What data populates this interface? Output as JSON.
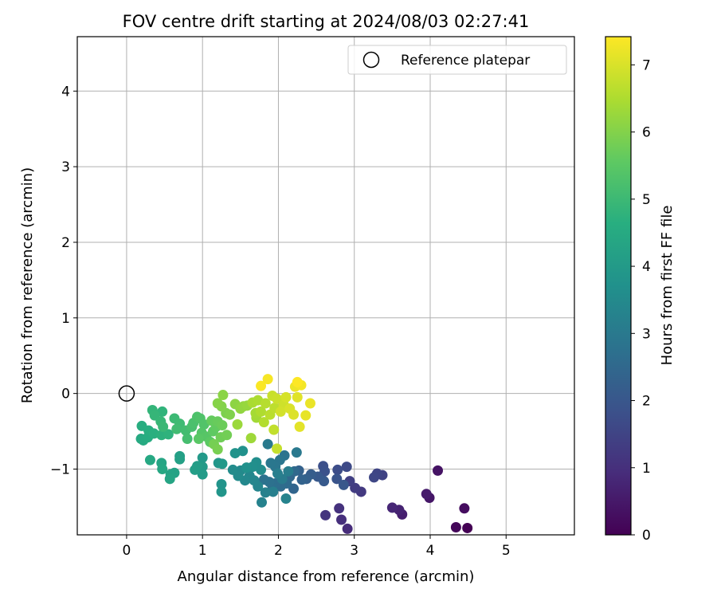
{
  "chart_data": {
    "type": "scatter",
    "title": "FOV centre drift starting at 2024/08/03 02:27:41",
    "xlabel": "Angular distance from reference (arcmin)",
    "ylabel": "Rotation from reference (arcmin)",
    "xlim": [
      -0.65,
      5.9
    ],
    "ylim": [
      -1.87,
      4.72
    ],
    "xticks": [
      0,
      1,
      2,
      3,
      4,
      5
    ],
    "yticks": [
      -1,
      0,
      1,
      2,
      3,
      4
    ],
    "grid": true,
    "legend": {
      "position": "top-right",
      "entries": [
        "Reference platepar"
      ]
    },
    "reference_point": {
      "x": 0,
      "y": 0,
      "label": "Reference platepar"
    },
    "colorbar": {
      "label": "Hours from first FF file",
      "colormap": "viridis",
      "range": [
        0,
        7.42
      ],
      "ticks": [
        0,
        1,
        2,
        3,
        4,
        5,
        6,
        7
      ]
    },
    "points": [
      [
        4.49,
        -1.78,
        0.0
      ],
      [
        4.34,
        -1.77,
        0.12
      ],
      [
        4.45,
        -1.52,
        0.25
      ],
      [
        4.1,
        -1.02,
        0.38
      ],
      [
        3.99,
        -1.38,
        0.45
      ],
      [
        3.95,
        -1.33,
        0.55
      ],
      [
        3.63,
        -1.6,
        0.62
      ],
      [
        3.59,
        -1.54,
        0.72
      ],
      [
        3.5,
        -1.51,
        0.8
      ],
      [
        2.91,
        -1.79,
        0.9
      ],
      [
        2.83,
        -1.67,
        0.98
      ],
      [
        2.8,
        -1.52,
        1.05
      ],
      [
        2.62,
        -1.61,
        1.12
      ],
      [
        3.09,
        -1.3,
        1.22
      ],
      [
        3.01,
        -1.25,
        1.3
      ],
      [
        2.94,
        -1.16,
        1.38
      ],
      [
        3.37,
        -1.08,
        1.45
      ],
      [
        3.3,
        -1.06,
        1.52
      ],
      [
        3.26,
        -1.11,
        1.58
      ],
      [
        2.9,
        -0.97,
        1.65
      ],
      [
        2.78,
        -1.01,
        1.72
      ],
      [
        2.59,
        -0.96,
        1.8
      ],
      [
        2.61,
        -1.03,
        1.85
      ],
      [
        2.77,
        -1.13,
        1.92
      ],
      [
        2.86,
        -1.21,
        2.0
      ],
      [
        2.52,
        -1.1,
        2.05
      ],
      [
        2.6,
        -1.16,
        2.1
      ],
      [
        2.43,
        -1.07,
        2.18
      ],
      [
        2.37,
        -1.13,
        2.25
      ],
      [
        2.27,
        -1.02,
        2.3
      ],
      [
        2.31,
        -1.14,
        2.35
      ],
      [
        2.2,
        -1.26,
        2.42
      ],
      [
        2.15,
        -1.1,
        2.48
      ],
      [
        2.21,
        -1.03,
        2.52
      ],
      [
        2.11,
        -1.19,
        2.58
      ],
      [
        2.03,
        -1.23,
        2.62
      ],
      [
        1.96,
        -1.19,
        2.66
      ],
      [
        1.92,
        -1.22,
        2.7
      ],
      [
        1.88,
        -1.17,
        2.75
      ],
      [
        1.81,
        -1.14,
        2.78
      ],
      [
        2.08,
        -0.82,
        2.82
      ],
      [
        2.02,
        -0.88,
        2.86
      ],
      [
        1.96,
        -0.97,
        2.9
      ],
      [
        1.9,
        -0.92,
        2.94
      ],
      [
        2.24,
        -0.78,
        2.98
      ],
      [
        1.86,
        -0.67,
        3.02
      ],
      [
        2.05,
        -1.13,
        3.06
      ],
      [
        2.13,
        -1.03,
        3.1
      ],
      [
        1.99,
        -1.06,
        3.14
      ],
      [
        1.93,
        -1.3,
        3.18
      ],
      [
        1.83,
        -1.31,
        3.22
      ],
      [
        1.78,
        -1.44,
        3.26
      ],
      [
        2.1,
        -1.39,
        3.3
      ],
      [
        1.73,
        -1.23,
        3.34
      ],
      [
        1.68,
        -1.15,
        3.38
      ],
      [
        1.62,
        -1.09,
        3.42
      ],
      [
        1.56,
        -1.15,
        3.45
      ],
      [
        1.5,
        -1.02,
        3.48
      ],
      [
        1.47,
        -1.09,
        3.52
      ],
      [
        1.4,
        -1.01,
        3.55
      ],
      [
        1.77,
        -1.01,
        3.58
      ],
      [
        1.71,
        -0.91,
        3.62
      ],
      [
        1.66,
        -0.97,
        3.66
      ],
      [
        1.58,
        -0.98,
        3.7
      ],
      [
        1.53,
        -0.76,
        3.72
      ],
      [
        1.43,
        -0.79,
        3.76
      ],
      [
        1.25,
        -1.2,
        3.8
      ],
      [
        1.25,
        -1.3,
        3.84
      ],
      [
        1.21,
        -0.92,
        3.88
      ],
      [
        1.26,
        -0.93,
        3.92
      ],
      [
        1.0,
        -0.85,
        3.96
      ],
      [
        1.0,
        -0.97,
        4.0
      ],
      [
        1.0,
        -1.07,
        4.04
      ],
      [
        0.93,
        -0.96,
        4.08
      ],
      [
        0.9,
        -1.01,
        4.12
      ],
      [
        0.7,
        -0.83,
        4.16
      ],
      [
        0.7,
        -0.87,
        4.2
      ],
      [
        0.63,
        -1.05,
        4.24
      ],
      [
        0.58,
        -1.07,
        4.28
      ],
      [
        0.57,
        -1.13,
        4.32
      ],
      [
        0.46,
        -0.92,
        4.36
      ],
      [
        0.47,
        -1.0,
        4.4
      ],
      [
        0.31,
        -0.88,
        4.44
      ],
      [
        0.19,
        -0.6,
        4.48
      ],
      [
        0.22,
        -0.62,
        4.52
      ],
      [
        0.28,
        -0.58,
        4.56
      ],
      [
        0.2,
        -0.43,
        4.6
      ],
      [
        0.29,
        -0.49,
        4.64
      ],
      [
        0.36,
        -0.53,
        4.68
      ],
      [
        0.46,
        -0.55,
        4.72
      ],
      [
        0.55,
        -0.54,
        4.76
      ],
      [
        0.47,
        -0.24,
        4.8
      ],
      [
        0.34,
        -0.22,
        4.84
      ],
      [
        0.37,
        -0.29,
        4.88
      ],
      [
        0.45,
        -0.37,
        4.92
      ],
      [
        0.48,
        -0.44,
        4.96
      ],
      [
        0.63,
        -0.33,
        5.0
      ],
      [
        0.7,
        -0.4,
        5.04
      ],
      [
        0.66,
        -0.47,
        5.08
      ],
      [
        0.78,
        -0.49,
        5.12
      ],
      [
        0.8,
        -0.6,
        5.16
      ],
      [
        0.86,
        -0.44,
        5.2
      ],
      [
        0.88,
        -0.39,
        5.24
      ],
      [
        0.93,
        -0.31,
        5.28
      ],
      [
        0.97,
        -0.33,
        5.32
      ],
      [
        1.02,
        -0.41,
        5.36
      ],
      [
        0.99,
        -0.52,
        5.4
      ],
      [
        1.05,
        -0.57,
        5.44
      ],
      [
        0.95,
        -0.6,
        5.48
      ],
      [
        1.1,
        -0.64,
        5.52
      ],
      [
        1.14,
        -0.5,
        5.56
      ],
      [
        1.18,
        -0.44,
        5.6
      ],
      [
        1.12,
        -0.36,
        5.64
      ],
      [
        1.2,
        -0.37,
        5.68
      ],
      [
        1.26,
        -0.42,
        5.72
      ],
      [
        1.24,
        -0.58,
        5.76
      ],
      [
        1.32,
        -0.55,
        5.8
      ],
      [
        1.15,
        -0.67,
        5.84
      ],
      [
        1.2,
        -0.74,
        5.88
      ],
      [
        1.31,
        -0.26,
        5.92
      ],
      [
        1.36,
        -0.28,
        5.96
      ],
      [
        1.25,
        -0.17,
        6.0
      ],
      [
        1.2,
        -0.13,
        6.04
      ],
      [
        1.27,
        -0.02,
        6.08
      ],
      [
        1.43,
        -0.14,
        6.12
      ],
      [
        1.5,
        -0.2,
        6.16
      ],
      [
        1.54,
        -0.17,
        6.2
      ],
      [
        1.59,
        -0.16,
        6.24
      ],
      [
        1.46,
        -0.41,
        6.28
      ],
      [
        1.64,
        -0.59,
        6.32
      ],
      [
        1.71,
        -0.32,
        6.36
      ],
      [
        1.7,
        -0.26,
        6.4
      ],
      [
        1.66,
        -0.12,
        6.44
      ],
      [
        1.73,
        -0.09,
        6.48
      ],
      [
        1.77,
        -0.24,
        6.52
      ],
      [
        1.81,
        -0.38,
        6.56
      ],
      [
        1.83,
        -0.13,
        6.6
      ],
      [
        1.89,
        -0.28,
        6.64
      ],
      [
        1.95,
        -0.19,
        6.68
      ],
      [
        1.94,
        -0.48,
        6.72
      ],
      [
        1.98,
        -0.73,
        6.76
      ],
      [
        1.92,
        -0.03,
        6.8
      ],
      [
        1.98,
        -0.07,
        6.84
      ],
      [
        2.07,
        -0.15,
        6.88
      ],
      [
        2.03,
        -0.24,
        6.92
      ],
      [
        2.1,
        -0.05,
        6.96
      ],
      [
        2.15,
        -0.2,
        7.0
      ],
      [
        2.2,
        -0.28,
        7.04
      ],
      [
        2.25,
        -0.05,
        7.08
      ],
      [
        2.28,
        -0.44,
        7.12
      ],
      [
        2.36,
        -0.29,
        7.16
      ],
      [
        2.42,
        -0.13,
        7.2
      ],
      [
        2.22,
        0.09,
        7.24
      ],
      [
        2.3,
        0.11,
        7.3
      ],
      [
        1.86,
        0.19,
        7.34
      ],
      [
        1.77,
        0.1,
        7.38
      ],
      [
        2.25,
        0.15,
        7.42
      ]
    ]
  }
}
